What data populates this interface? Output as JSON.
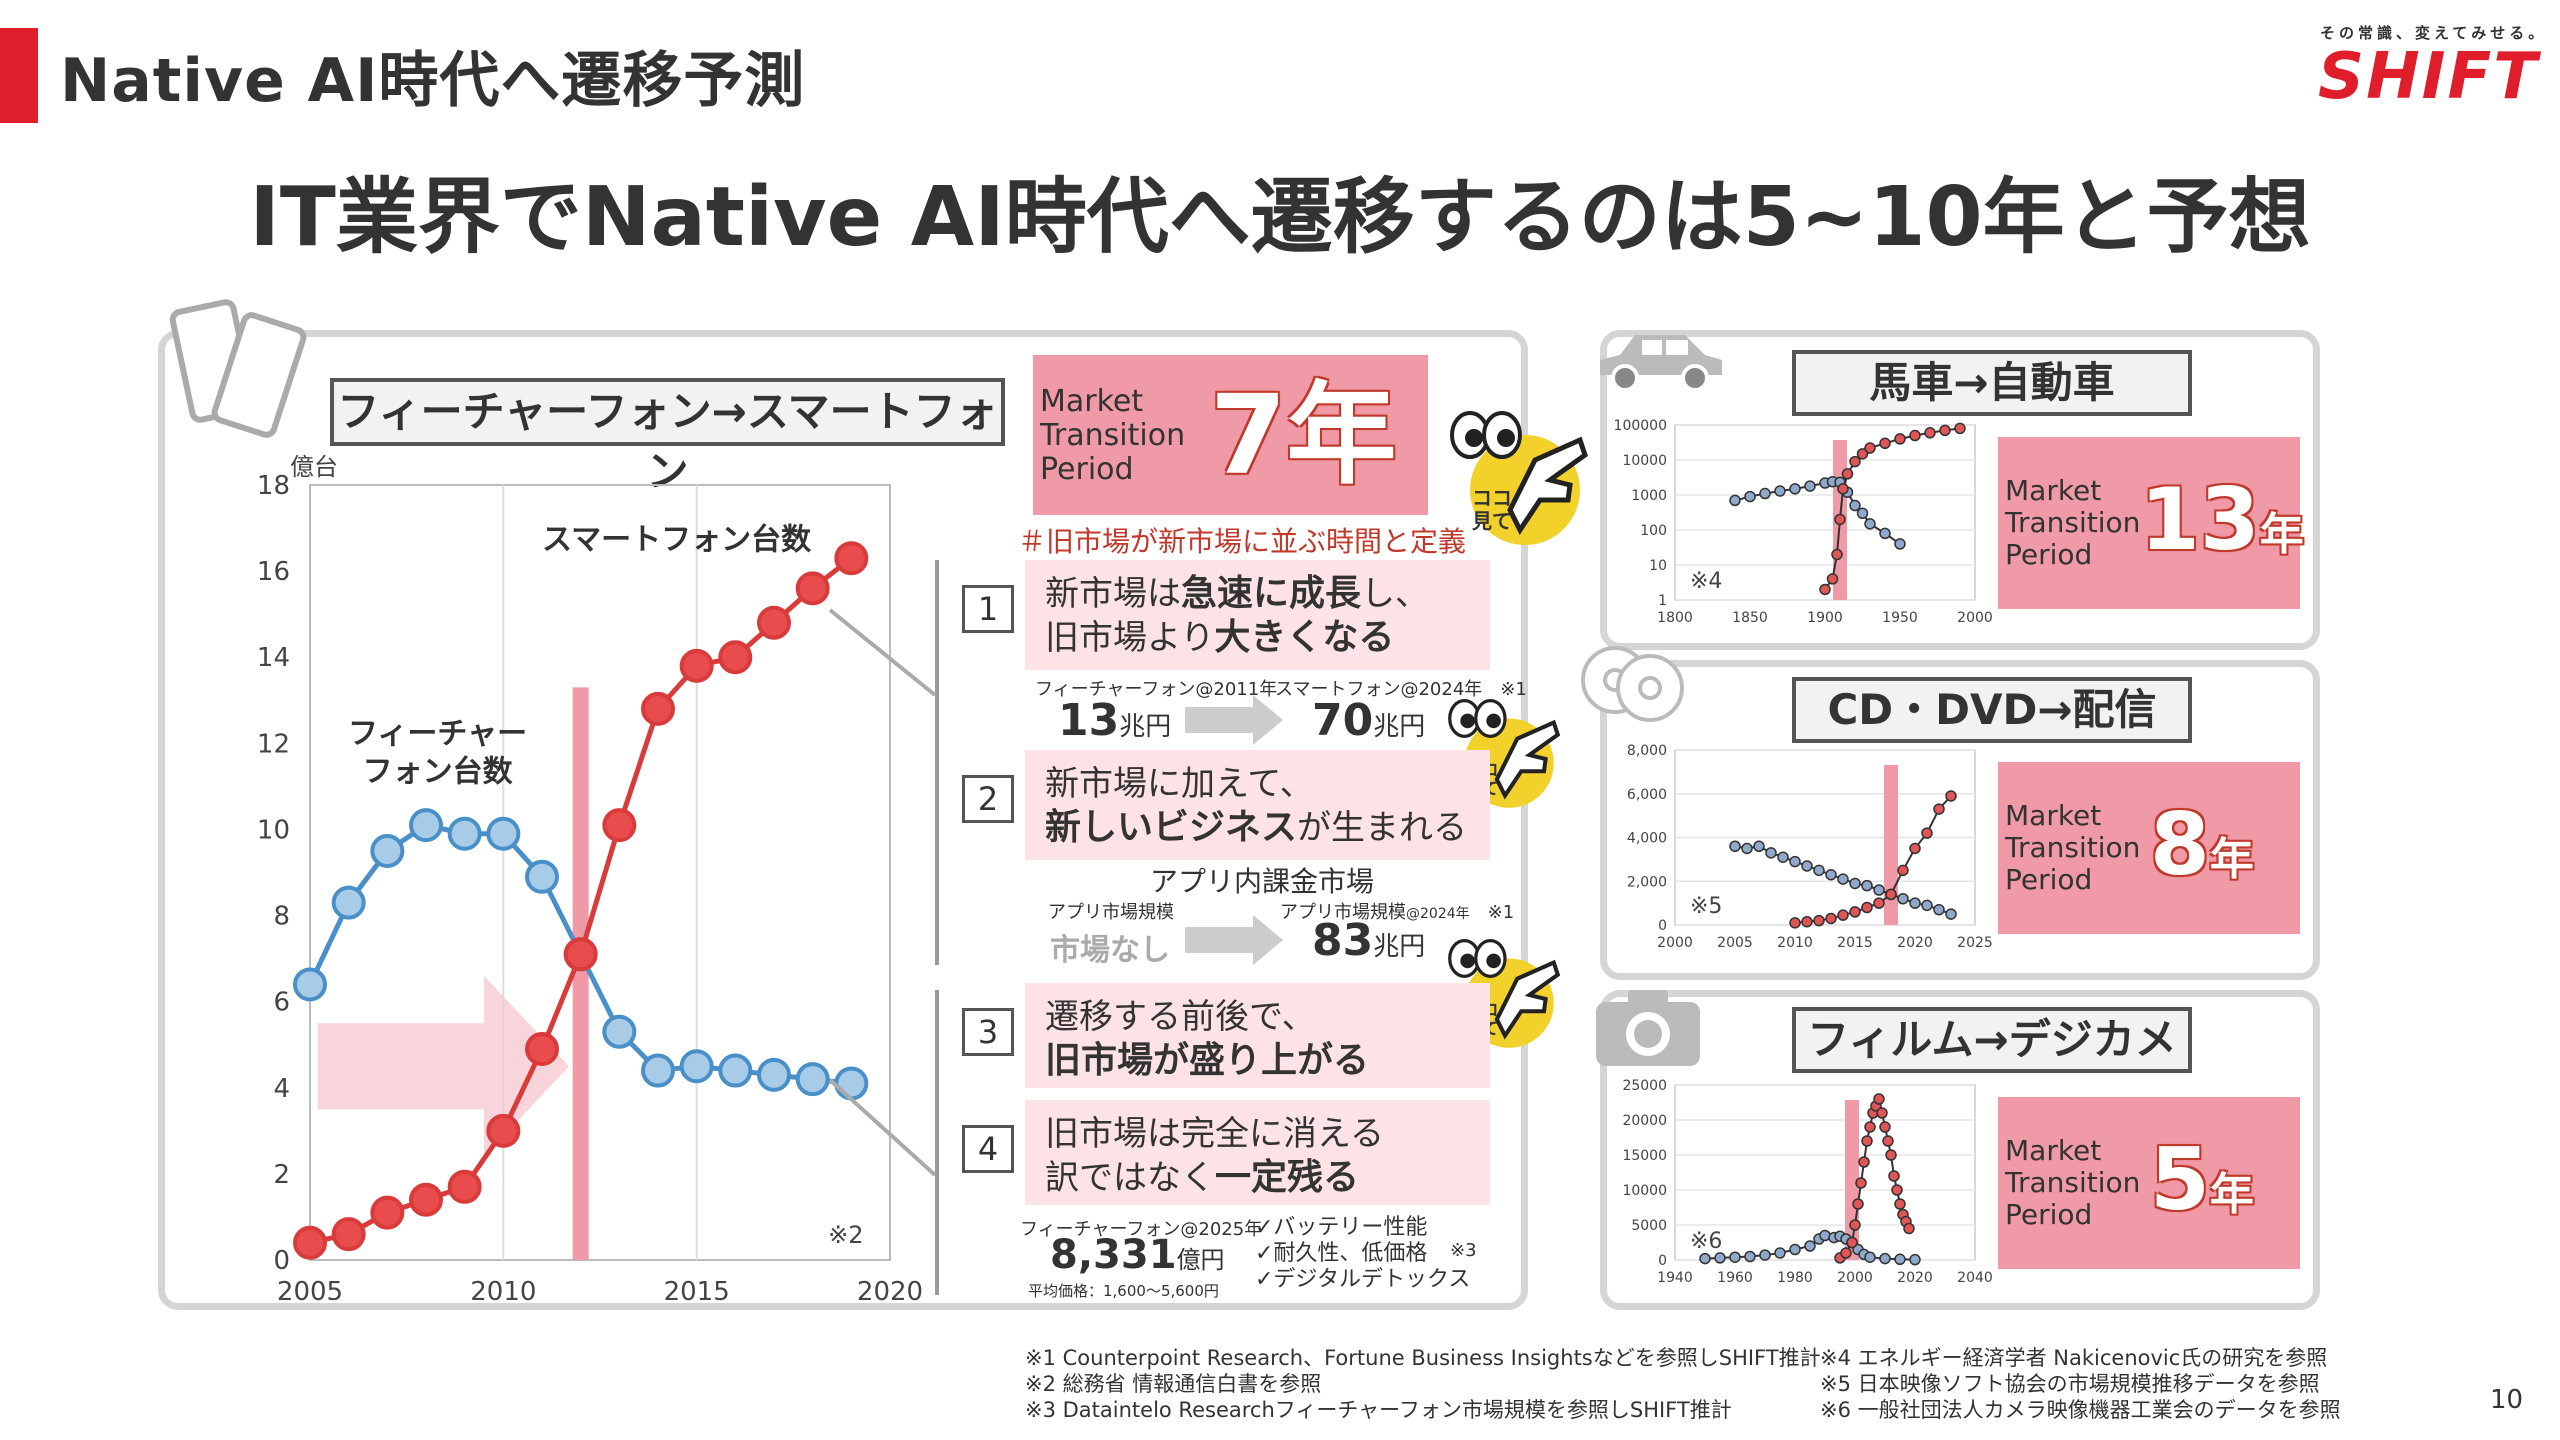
{
  "header": {
    "title": "Native AI時代へ遷移予測",
    "brand_tagline": "その常識、変えてみせる。",
    "brand_name": "SHIFT",
    "headline": "IT業界でNative AI時代へ遷移するのは5~10年と予想"
  },
  "main_panel": {
    "label": "フィーチャーフォン→スマートフォン",
    "mtp_text": "Market\nTransition\nPeriod",
    "period_value": "7年",
    "definition_note": "＃旧市場が新市場に並ぶ時間と定義",
    "callout_text": "ココ\n見て",
    "steps": [
      {
        "num": "1",
        "line1_pre": "新市場は",
        "line1_bold": "急速に成長",
        "line1_post": "し、",
        "line2_pre": "旧市場より",
        "line2_bold": "大きくなる",
        "line2_post": ""
      },
      {
        "num": "2",
        "line1_pre": "新市場に加えて、",
        "line1_bold": "",
        "line1_post": "",
        "line2_pre": "",
        "line2_bold": "新しいビジネス",
        "line2_post": "が生まれる"
      },
      {
        "num": "3",
        "line1_pre": "遷移する前後で、",
        "line1_bold": "",
        "line1_post": "",
        "line2_pre": "",
        "line2_bold": "旧市場が盛り上がる",
        "line2_post": ""
      },
      {
        "num": "4",
        "line1_pre": "旧市場は完全に消える",
        "line1_bold": "",
        "line1_post": "",
        "line2_pre": "訳ではなく",
        "line2_bold": "一定残る",
        "line2_post": ""
      }
    ],
    "compare1": {
      "left_label": "フィーチャーフォン@2011年",
      "left_value": "13",
      "left_unit": "兆円",
      "right_label": "スマートフォン@2024年",
      "right_note": "※1",
      "right_value": "70",
      "right_unit": "兆円"
    },
    "compare2": {
      "title": "アプリ内課金市場",
      "left_label": "アプリ市場規模",
      "left_value": "市場なし",
      "right_label": "アプリ市場規模",
      "right_label_sub": "@2024年",
      "right_note": "※1",
      "right_value": "83",
      "right_unit": "兆円"
    },
    "compare3": {
      "left_label": "フィーチャーフォン@2025年",
      "left_value": "8,331",
      "left_unit": "億円",
      "left_sub": "平均価格：1,600～5,600円",
      "checks": [
        "✓バッテリー性能",
        "✓耐久性、低価格",
        "✓デジタルデトックス"
      ],
      "note": "※3"
    }
  },
  "chart_data": [
    {
      "type": "line",
      "ylabel": "億台",
      "xlim": [
        2005,
        2020
      ],
      "ylim": [
        0,
        18
      ],
      "xticks": [
        2005,
        2010,
        2015,
        2020
      ],
      "yticks": [
        0,
        2,
        4,
        6,
        8,
        10,
        12,
        14,
        16,
        18
      ],
      "grid": "vertical",
      "note": "※2",
      "transition_marker_x": 2012,
      "series": [
        {
          "name": "フィーチャーフォン台数",
          "color": "#4a90c8",
          "fill": "#a8cbe8",
          "x": [
            2005,
            2006,
            2007,
            2008,
            2009,
            2010,
            2011,
            2012,
            2013,
            2014,
            2015,
            2016,
            2017,
            2018,
            2019
          ],
          "values": [
            6.4,
            8.3,
            9.5,
            10.1,
            9.9,
            9.9,
            8.9,
            7.1,
            5.3,
            4.4,
            4.5,
            4.4,
            4.3,
            4.2,
            4.1
          ]
        },
        {
          "name": "スマートフォン台数",
          "color": "#d93a3a",
          "fill": "#e84c4c",
          "x": [
            2005,
            2006,
            2007,
            2008,
            2009,
            2010,
            2011,
            2012,
            2013,
            2014,
            2015,
            2016,
            2017,
            2018,
            2019
          ],
          "values": [
            0.4,
            0.6,
            1.1,
            1.4,
            1.7,
            3.0,
            4.9,
            7.1,
            10.1,
            12.8,
            13.8,
            14.0,
            14.8,
            15.6,
            16.3
          ]
        }
      ]
    },
    {
      "type": "line",
      "title": "馬車→自動車",
      "scale": "log",
      "xlim": [
        1800,
        2000
      ],
      "ylim": [
        1,
        100000
      ],
      "xticks": [
        1800,
        1850,
        1900,
        1950,
        2000
      ],
      "yticks": [
        "1",
        "10",
        "100",
        "1000",
        "10000",
        "100000"
      ],
      "note": "※4",
      "transition_marker_x": 1910,
      "mtp_text": "Market\nTransition\nPeriod",
      "period_value": "13",
      "period_unit": "年",
      "series": [
        {
          "name": "",
          "color": "#4a6fa5",
          "x": [
            1840,
            1850,
            1860,
            1870,
            1880,
            1890,
            1900,
            1905,
            1910,
            1915,
            1920,
            1925,
            1930,
            1940,
            1950
          ],
          "values": [
            700,
            900,
            1100,
            1300,
            1500,
            1800,
            2200,
            2400,
            2300,
            1200,
            500,
            300,
            150,
            80,
            40
          ]
        },
        {
          "name": "",
          "color": "#d93a3a",
          "x": [
            1900,
            1905,
            1908,
            1910,
            1912,
            1915,
            1920,
            1925,
            1930,
            1940,
            1950,
            1960,
            1970,
            1980,
            1990
          ],
          "values": [
            2,
            4,
            20,
            200,
            1500,
            4000,
            9000,
            15000,
            22000,
            30000,
            40000,
            50000,
            60000,
            70000,
            80000
          ]
        }
      ]
    },
    {
      "type": "line",
      "title": "CD・DVD→配信",
      "xlim": [
        2000,
        2025
      ],
      "ylim": [
        0,
        8000
      ],
      "xticks": [
        2000,
        2005,
        2010,
        2015,
        2020,
        2025
      ],
      "yticks": [
        "0",
        "2,000",
        "4,000",
        "6,000",
        "8,000"
      ],
      "note": "※5",
      "transition_marker_x": 2018,
      "mtp_text": "Market\nTransition\nPeriod",
      "period_value": "8",
      "period_unit": "年",
      "series": [
        {
          "name": "",
          "color": "#4a6fa5",
          "x": [
            2005,
            2006,
            2007,
            2008,
            2009,
            2010,
            2011,
            2012,
            2013,
            2014,
            2015,
            2016,
            2017,
            2018,
            2019,
            2020,
            2021,
            2022,
            2023
          ],
          "values": [
            3600,
            3500,
            3600,
            3300,
            3100,
            2900,
            2700,
            2500,
            2300,
            2100,
            1900,
            1800,
            1600,
            1400,
            1200,
            1000,
            900,
            700,
            500
          ]
        },
        {
          "name": "",
          "color": "#d93a3a",
          "x": [
            2010,
            2011,
            2012,
            2013,
            2014,
            2015,
            2016,
            2017,
            2018,
            2019,
            2020,
            2021,
            2022,
            2023
          ],
          "values": [
            100,
            150,
            200,
            300,
            450,
            600,
            800,
            1000,
            1400,
            2500,
            3500,
            4200,
            5300,
            5900
          ]
        }
      ]
    },
    {
      "type": "line",
      "title": "フィルム→デジカメ",
      "xlim": [
        1940,
        2040
      ],
      "ylim": [
        0,
        25000
      ],
      "xticks": [
        1940,
        1960,
        1980,
        2000,
        2020,
        2040
      ],
      "yticks": [
        "0",
        "5000",
        "10000",
        "15000",
        "20000",
        "25000"
      ],
      "note": "※6",
      "transition_marker_x": 1999,
      "mtp_text": "Market\nTransition\nPeriod",
      "period_value": "5",
      "period_unit": "年",
      "series": [
        {
          "name": "",
          "color": "#4a6fa5",
          "x": [
            1950,
            1955,
            1960,
            1965,
            1970,
            1975,
            1980,
            1985,
            1988,
            1990,
            1993,
            1995,
            1997,
            1999,
            2001,
            2003,
            2005,
            2010,
            2015,
            2020
          ],
          "values": [
            200,
            300,
            400,
            500,
            700,
            1000,
            1500,
            2000,
            3000,
            3500,
            3200,
            3400,
            3000,
            2500,
            1500,
            800,
            400,
            200,
            100,
            50
          ]
        },
        {
          "name": "",
          "color": "#d93a3a",
          "x": [
            1995,
            1997,
            1999,
            2000,
            2001,
            2002,
            2003,
            2004,
            2005,
            2006,
            2007,
            2008,
            2009,
            2010,
            2011,
            2012,
            2013,
            2014,
            2015,
            2016,
            2017,
            2018
          ],
          "values": [
            300,
            1000,
            2500,
            5000,
            8000,
            11000,
            14000,
            17000,
            19000,
            21000,
            22000,
            23000,
            21000,
            19000,
            17000,
            15000,
            12000,
            10000,
            8000,
            6500,
            5500,
            4500
          ]
        }
      ]
    }
  ],
  "side_icons": {
    "phone": "smartphone-icon",
    "car": "car-icon",
    "disc": "disc-icon",
    "camera": "camera-icon"
  },
  "footnotes": {
    "left": [
      "※1 Counterpoint Research、Fortune Business Insightsなどを参照しSHIFT推計",
      "※2 総務省 情報通信白書を参照",
      "※3 Dataintelo Researchフィーチャーフォン市場規模を参照しSHIFT推計"
    ],
    "right": [
      "※4 エネルギー経済学者 Nakicenovic氏の研究を参照",
      "※5 日本映像ソフト協会の市場規模推移データを参照",
      "※6 一般社団法人カメラ映像機器工業会のデータを参照"
    ]
  },
  "page_number": "10",
  "colors": {
    "accent_red": "#e01d2b",
    "pink": "#ef9aa6",
    "light_pink": "#fde3e6",
    "blue": "#4a90c8"
  }
}
